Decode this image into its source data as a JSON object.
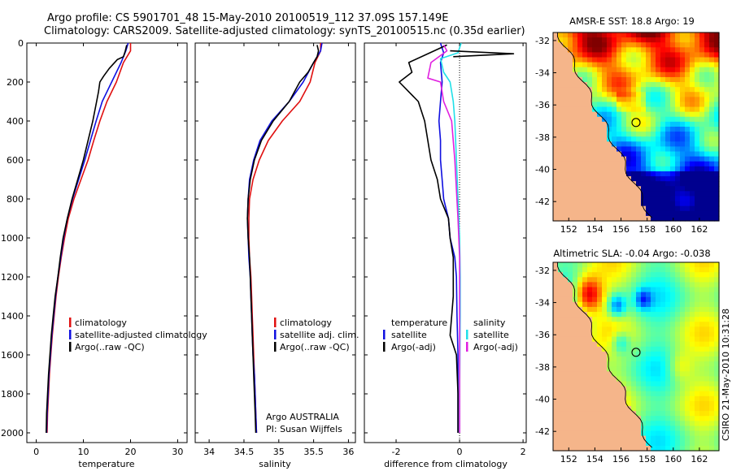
{
  "figure": {
    "title_line1": "Argo profile: CS 5901701_48 15-May-2010 20100519_112 37.09S 157.149E",
    "title_line2": "Climatology: CARS2009. Satellite-adjusted climatology: synTS_20100515.nc (0.35d earlier)",
    "credit": "CSIRO 21-May-2010 10:31:28",
    "float_info_line1": "Argo AUSTRALIA",
    "float_info_line2": "PI: Susan Wijffels"
  },
  "colors": {
    "red": "#e01010",
    "blue": "#1010e0",
    "black": "#000000",
    "cyan": "#20e0e8",
    "magenta": "#e020e0",
    "land": "#f5b58a"
  },
  "chart_data": [
    {
      "type": "line",
      "title": "",
      "xlabel": "temperature",
      "ylabel": "",
      "xlim": [
        -2,
        32
      ],
      "ylim": [
        2050,
        0
      ],
      "xticks": [
        0,
        10,
        20,
        30
      ],
      "yticks": [
        0,
        200,
        400,
        600,
        800,
        1000,
        1200,
        1400,
        1600,
        1800,
        2000
      ],
      "legend": [
        "climatology",
        "satellite-adjusted climatology",
        "Argo(..raw -QC)"
      ],
      "series": [
        {
          "name": "climatology",
          "color": "red",
          "points": [
            [
              20,
              0
            ],
            [
              20,
              40
            ],
            [
              18.5,
              100
            ],
            [
              17,
              200
            ],
            [
              15,
              300
            ],
            [
              13.5,
              400
            ],
            [
              12.2,
              500
            ],
            [
              11,
              600
            ],
            [
              9.5,
              700
            ],
            [
              8,
              800
            ],
            [
              6.8,
              900
            ],
            [
              6,
              1000
            ],
            [
              5.3,
              1100
            ],
            [
              4.7,
              1200
            ],
            [
              4.2,
              1300
            ],
            [
              3.8,
              1400
            ],
            [
              3.4,
              1500
            ],
            [
              3.1,
              1600
            ],
            [
              2.8,
              1700
            ],
            [
              2.6,
              1800
            ],
            [
              2.4,
              1900
            ],
            [
              2.3,
              2000
            ]
          ]
        },
        {
          "name": "satellite-adjusted climatology",
          "color": "blue",
          "points": [
            [
              19.5,
              0
            ],
            [
              19,
              40
            ],
            [
              18,
              100
            ],
            [
              16,
              200
            ],
            [
              14,
              300
            ],
            [
              12.7,
              400
            ],
            [
              11.5,
              500
            ],
            [
              10.3,
              600
            ],
            [
              9,
              700
            ],
            [
              7.7,
              800
            ],
            [
              6.6,
              900
            ],
            [
              5.8,
              1000
            ],
            [
              5.2,
              1100
            ],
            [
              4.6,
              1200
            ],
            [
              4.1,
              1300
            ],
            [
              3.7,
              1400
            ],
            [
              3.3,
              1500
            ],
            [
              3,
              1600
            ],
            [
              2.7,
              1700
            ],
            [
              2.5,
              1800
            ],
            [
              2.3,
              1900
            ],
            [
              2.2,
              2000
            ]
          ]
        },
        {
          "name": "Argo(..raw -QC)",
          "color": "black",
          "points": [
            [
              19.2,
              10
            ],
            [
              18.9,
              40
            ],
            [
              18.5,
              70
            ],
            [
              17.2,
              85
            ],
            [
              15.5,
              130
            ],
            [
              14.3,
              170
            ],
            [
              13.5,
              200
            ],
            [
              13.2,
              250
            ],
            [
              12.8,
              300
            ],
            [
              12,
              400
            ],
            [
              11,
              500
            ],
            [
              10,
              600
            ],
            [
              8.8,
              700
            ],
            [
              7.6,
              800
            ],
            [
              6.6,
              900
            ],
            [
              5.7,
              1000
            ],
            [
              5.1,
              1100
            ],
            [
              4.6,
              1200
            ],
            [
              4,
              1300
            ],
            [
              3.6,
              1400
            ],
            [
              3.2,
              1500
            ],
            [
              2.9,
              1600
            ],
            [
              2.6,
              1700
            ],
            [
              2.4,
              1800
            ],
            [
              2.2,
              1900
            ],
            [
              2.1,
              2000
            ]
          ]
        }
      ]
    },
    {
      "type": "line",
      "title": "",
      "xlabel": "salinity",
      "ylabel": "",
      "xlim": [
        33.8,
        36.1
      ],
      "ylim": [
        2050,
        0
      ],
      "xticks": [
        34,
        34.5,
        35,
        35.5,
        36
      ],
      "xticklabels": [
        "34",
        "34.5",
        "35",
        "35.5",
        "36"
      ],
      "legend": [
        "climatology",
        "satellite adj. clim.",
        "Argo(..raw -QC)"
      ],
      "series": [
        {
          "name": "climatology",
          "color": "red",
          "points": [
            [
              35.6,
              0
            ],
            [
              35.6,
              40
            ],
            [
              35.52,
              100
            ],
            [
              35.45,
              200
            ],
            [
              35.3,
              300
            ],
            [
              35.05,
              400
            ],
            [
              34.85,
              500
            ],
            [
              34.72,
              600
            ],
            [
              34.63,
              700
            ],
            [
              34.58,
              800
            ],
            [
              34.57,
              900
            ],
            [
              34.57,
              1000
            ],
            [
              34.58,
              1100
            ],
            [
              34.6,
              1200
            ],
            [
              34.61,
              1300
            ],
            [
              34.62,
              1400
            ],
            [
              34.63,
              1500
            ],
            [
              34.64,
              1600
            ],
            [
              34.65,
              1700
            ],
            [
              34.66,
              1800
            ],
            [
              34.67,
              1900
            ],
            [
              34.68,
              2000
            ]
          ]
        },
        {
          "name": "satellite adj. clim.",
          "color": "blue",
          "points": [
            [
              35.62,
              0
            ],
            [
              35.6,
              40
            ],
            [
              35.5,
              100
            ],
            [
              35.35,
              200
            ],
            [
              35.15,
              300
            ],
            [
              34.9,
              400
            ],
            [
              34.73,
              500
            ],
            [
              34.64,
              600
            ],
            [
              34.58,
              700
            ],
            [
              34.56,
              800
            ],
            [
              34.55,
              900
            ],
            [
              34.56,
              1000
            ],
            [
              34.57,
              1100
            ],
            [
              34.59,
              1200
            ],
            [
              34.6,
              1300
            ],
            [
              34.61,
              1400
            ],
            [
              34.62,
              1500
            ],
            [
              34.63,
              1600
            ],
            [
              34.65,
              1700
            ],
            [
              34.66,
              1800
            ],
            [
              34.67,
              1900
            ],
            [
              34.68,
              2000
            ]
          ]
        },
        {
          "name": "Argo(..raw -QC)",
          "color": "black",
          "points": [
            [
              35.55,
              10
            ],
            [
              35.57,
              40
            ],
            [
              35.55,
              70
            ],
            [
              35.5,
              100
            ],
            [
              35.42,
              150
            ],
            [
              35.3,
              200
            ],
            [
              35.15,
              300
            ],
            [
              34.92,
              400
            ],
            [
              34.75,
              500
            ],
            [
              34.65,
              600
            ],
            [
              34.59,
              700
            ],
            [
              34.56,
              800
            ],
            [
              34.55,
              900
            ],
            [
              34.56,
              1000
            ],
            [
              34.58,
              1100
            ],
            [
              34.59,
              1200
            ],
            [
              34.6,
              1300
            ],
            [
              34.61,
              1400
            ],
            [
              34.62,
              1500
            ],
            [
              34.63,
              1600
            ],
            [
              34.64,
              1700
            ],
            [
              34.65,
              1800
            ],
            [
              34.66,
              1900
            ],
            [
              34.67,
              2000
            ]
          ]
        }
      ]
    },
    {
      "type": "line",
      "title": "",
      "xlabel": "difference from climatology",
      "ylabel": "",
      "xlim": [
        -3,
        2.1
      ],
      "ylim": [
        2050,
        0
      ],
      "xticks": [
        -2,
        0,
        2
      ],
      "legend_left_header": "temperature",
      "legend_right_header": "salinity",
      "legend": [
        "satellite",
        "Argo(-adj)",
        "satellite",
        "Argo(-adj)"
      ],
      "series": [
        {
          "name": "temperature satellite",
          "color": "blue",
          "points": [
            [
              -0.6,
              0
            ],
            [
              -0.5,
              50
            ],
            [
              -0.6,
              100
            ],
            [
              -0.55,
              200
            ],
            [
              -0.6,
              300
            ],
            [
              -0.65,
              400
            ],
            [
              -0.6,
              500
            ],
            [
              -0.6,
              600
            ],
            [
              -0.55,
              700
            ],
            [
              -0.5,
              800
            ],
            [
              -0.35,
              900
            ],
            [
              -0.3,
              1000
            ],
            [
              -0.15,
              1100
            ],
            [
              -0.1,
              1200
            ],
            [
              -0.08,
              1400
            ],
            [
              -0.05,
              1600
            ],
            [
              -0.05,
              1800
            ],
            [
              -0.05,
              2000
            ]
          ]
        },
        {
          "name": "temperature Argo(-adj)",
          "color": "black",
          "points": [
            [
              -0.4,
              10
            ],
            [
              -0.8,
              40
            ],
            [
              -1.6,
              100
            ],
            [
              -1.5,
              150
            ],
            [
              -1.9,
              200
            ],
            [
              -1.3,
              300
            ],
            [
              -1.1,
              400
            ],
            [
              -0.9,
              600
            ],
            [
              -0.7,
              700
            ],
            [
              -0.6,
              800
            ],
            [
              -0.35,
              900
            ],
            [
              -0.3,
              1000
            ],
            [
              -0.2,
              1100
            ],
            [
              -0.2,
              1300
            ],
            [
              -0.3,
              1500
            ],
            [
              -0.1,
              1600
            ],
            [
              -0.05,
              1800
            ],
            [
              -0.05,
              2000
            ]
          ]
        },
        {
          "name": "salinity satellite",
          "color": "cyan",
          "points": [
            [
              0.05,
              0
            ],
            [
              -0.05,
              50
            ],
            [
              -0.6,
              80
            ],
            [
              -0.5,
              150
            ],
            [
              -0.3,
              200
            ],
            [
              -0.2,
              300
            ],
            [
              -0.15,
              400
            ],
            [
              -0.1,
              600
            ],
            [
              -0.05,
              800
            ],
            [
              0,
              1000
            ],
            [
              0.02,
              1200
            ],
            [
              0.02,
              1400
            ],
            [
              0.01,
              1600
            ],
            [
              0,
              1800
            ],
            [
              0,
              2000
            ]
          ]
        },
        {
          "name": "salinity Argo(-adj)",
          "color": "magenta",
          "points": [
            [
              -0.5,
              10
            ],
            [
              -0.4,
              40
            ],
            [
              -0.9,
              100
            ],
            [
              -1,
              180
            ],
            [
              -0.6,
              200
            ],
            [
              -0.5,
              300
            ],
            [
              -0.25,
              400
            ],
            [
              -0.15,
              600
            ],
            [
              -0.05,
              900
            ],
            [
              0,
              1100
            ],
            [
              0,
              1500
            ],
            [
              0,
              2000
            ]
          ]
        },
        {
          "name": "mixed-layer spike",
          "color": "black",
          "points": [
            [
              -0.3,
              40
            ],
            [
              1.7,
              55
            ],
            [
              -0.2,
              70
            ]
          ]
        }
      ]
    },
    {
      "type": "heatmap",
      "title": "AMSR-E SST: 18.8 Argo: 19",
      "xlim": [
        150.8,
        163.5
      ],
      "ylim": [
        -43.2,
        -31.5
      ],
      "xticks": [
        152,
        154,
        156,
        158,
        160,
        162
      ],
      "yticks": [
        -32,
        -34,
        -36,
        -38,
        -40,
        -42
      ],
      "argo_position": {
        "lon": 157.149,
        "lat": -37.09
      },
      "colorscale": "jet"
    },
    {
      "type": "heatmap",
      "title": "Altimetric SLA: -0.04 Argo: -0.038",
      "xlim": [
        150.8,
        163.5
      ],
      "ylim": [
        -43.2,
        -31.5
      ],
      "xticks": [
        152,
        154,
        156,
        158,
        160,
        162
      ],
      "yticks": [
        -32,
        -34,
        -36,
        -38,
        -40,
        -42
      ],
      "argo_position": {
        "lon": 157.149,
        "lat": -37.09
      },
      "colorscale": "jet"
    }
  ]
}
